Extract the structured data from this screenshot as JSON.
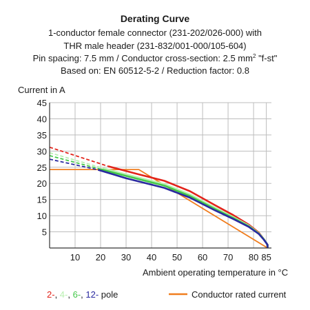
{
  "chart_data": {
    "type": "line",
    "title": "Derating Curve",
    "subtitle_lines": [
      "1-conductor female connector (231-202/026-000) with",
      "THR male header (231-832/001-000/105-604)",
      "Pin spacing: 7.5 mm / Conductor cross-section: 2.5 mm",
      "Based on: EN 60512-5-2 / Reduction factor: 0.8"
    ],
    "superscript": "2",
    "subtitle_tail": "\"f-st\"",
    "ylabel": "Current in A",
    "xlabel": "Ambient operating temperature in °C",
    "xlim": [
      0,
      87
    ],
    "ylim": [
      0,
      45
    ],
    "x_ticks": [
      10,
      20,
      30,
      40,
      50,
      60,
      70,
      80,
      85
    ],
    "y_ticks": [
      5,
      10,
      15,
      20,
      25,
      30,
      35,
      40,
      45
    ],
    "grid": true,
    "legend": {
      "pole_items": [
        {
          "text": "2-",
          "color": "#e2231a"
        },
        {
          "text": ", ",
          "color": "#1a1a1a"
        },
        {
          "text": "4-",
          "color": "#b8f0b0"
        },
        {
          "text": ", ",
          "color": "#1a1a1a"
        },
        {
          "text": "6-",
          "color": "#44c84a"
        },
        {
          "text": ", ",
          "color": "#1a1a1a"
        },
        {
          "text": "12-",
          "color": "#2929a0"
        },
        {
          "text": " pole",
          "color": "#1a1a1a"
        }
      ],
      "rated_label": "Conductor rated current",
      "rated_color": "#f07d1e"
    },
    "series": [
      {
        "color": "#f07d1e",
        "x": [
          0,
          35,
          85.5
        ],
        "y": [
          24.3,
          24.3,
          0
        ]
      },
      {
        "color": "#e2231a",
        "dashed_x": [
          0,
          23
        ],
        "dashed_y": [
          31.2,
          25.3
        ],
        "x": [
          23,
          35,
          45,
          55,
          65,
          72,
          78,
          82,
          84,
          85.5,
          85.5
        ],
        "y": [
          25.3,
          22.8,
          20.8,
          17.6,
          13.2,
          10.2,
          7.3,
          4.8,
          2.8,
          1.0,
          0
        ]
      },
      {
        "color": "#b8f0b0",
        "dashed_x": [
          0,
          21
        ],
        "dashed_y": [
          29.5,
          24.7
        ],
        "x": [
          21,
          30,
          45,
          55,
          65,
          72,
          78,
          82,
          84,
          85.5,
          85.5
        ],
        "y": [
          24.7,
          22.8,
          19.8,
          16.6,
          12.4,
          9.6,
          7.0,
          4.6,
          2.8,
          1.0,
          0
        ]
      },
      {
        "color": "#44c84a",
        "dashed_x": [
          0,
          20
        ],
        "dashed_y": [
          28.6,
          24.4
        ],
        "x": [
          20,
          30,
          45,
          55,
          65,
          72,
          78,
          82,
          84,
          85.5,
          85.5
        ],
        "y": [
          24.4,
          22.3,
          19.3,
          16.1,
          12.0,
          9.3,
          6.8,
          4.5,
          2.7,
          1.0,
          0
        ]
      },
      {
        "color": "#2929a0",
        "dashed_x": [
          0,
          19
        ],
        "dashed_y": [
          27.5,
          24.2
        ],
        "x": [
          19,
          30,
          45,
          55,
          65,
          72,
          78,
          82,
          84,
          85.5,
          85.5
        ],
        "y": [
          24.2,
          21.6,
          18.6,
          15.6,
          11.6,
          9.0,
          6.6,
          4.4,
          2.6,
          1.0,
          0
        ]
      }
    ]
  }
}
